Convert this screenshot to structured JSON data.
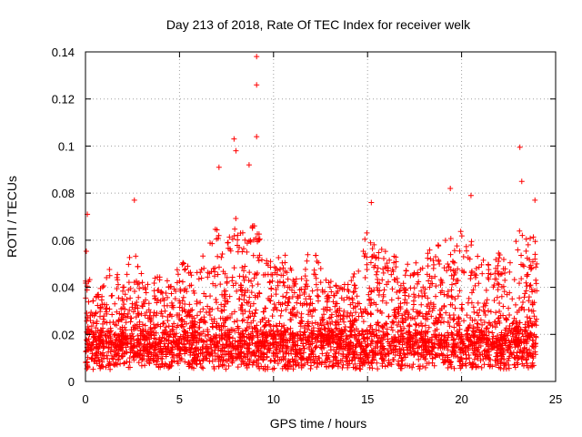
{
  "chart_data": {
    "type": "scatter",
    "title": "Day 213 of 2018, Rate Of TEC Index for receiver welk",
    "xlabel": "GPS time / hours",
    "ylabel": "ROTI / TECUs",
    "xlim": [
      0,
      25
    ],
    "ylim": [
      0,
      0.14
    ],
    "xticks": [
      0,
      5,
      10,
      15,
      20,
      25
    ],
    "yticks": [
      0,
      0.02,
      0.04,
      0.06,
      0.08,
      0.1,
      0.12,
      0.14
    ],
    "xtick_labels": [
      "0",
      "5",
      "10",
      "15",
      "20",
      "25"
    ],
    "ytick_labels": [
      "0",
      "0.02",
      "0.04",
      "0.06",
      "0.08",
      "0.1",
      "0.12",
      "0.14"
    ],
    "grid": true,
    "marker": "+",
    "color": "#ff0000",
    "notable_points": [
      {
        "x": 9.1,
        "y": 0.138
      },
      {
        "x": 9.1,
        "y": 0.126
      },
      {
        "x": 9.1,
        "y": 0.104
      },
      {
        "x": 7.9,
        "y": 0.103
      },
      {
        "x": 8.0,
        "y": 0.098
      },
      {
        "x": 23.1,
        "y": 0.0995
      },
      {
        "x": 23.2,
        "y": 0.085
      },
      {
        "x": 7.1,
        "y": 0.091
      },
      {
        "x": 8.7,
        "y": 0.092
      },
      {
        "x": 19.4,
        "y": 0.082
      },
      {
        "x": 20.5,
        "y": 0.079
      },
      {
        "x": 2.6,
        "y": 0.077
      },
      {
        "x": 15.2,
        "y": 0.076
      },
      {
        "x": 0.1,
        "y": 0.071
      },
      {
        "x": 23.9,
        "y": 0.077
      }
    ],
    "envelope": {
      "x": [
        0,
        0.5,
        1,
        1.5,
        2,
        2.5,
        3,
        3.5,
        4,
        4.5,
        5,
        5.5,
        6,
        6.5,
        7,
        7.5,
        8,
        8.5,
        9,
        9.5,
        10,
        10.5,
        11,
        11.5,
        12,
        12.5,
        13,
        13.5,
        14,
        14.5,
        15,
        15.5,
        16,
        16.5,
        17,
        17.5,
        18,
        18.5,
        19,
        19.5,
        20,
        20.5,
        21,
        21.5,
        22,
        22.5,
        23,
        23.5,
        24
      ],
      "y": [
        0.06,
        0.035,
        0.045,
        0.05,
        0.04,
        0.06,
        0.045,
        0.04,
        0.05,
        0.045,
        0.05,
        0.055,
        0.05,
        0.06,
        0.07,
        0.06,
        0.075,
        0.06,
        0.07,
        0.055,
        0.05,
        0.055,
        0.05,
        0.045,
        0.06,
        0.05,
        0.045,
        0.04,
        0.045,
        0.05,
        0.065,
        0.055,
        0.06,
        0.055,
        0.05,
        0.05,
        0.06,
        0.055,
        0.065,
        0.06,
        0.065,
        0.06,
        0.055,
        0.05,
        0.055,
        0.05,
        0.065,
        0.06,
        0.065
      ]
    },
    "baseline_range": [
      0.005,
      0.02
    ],
    "point_count": 3800,
    "x_range_of_data": [
      0,
      24
    ]
  }
}
